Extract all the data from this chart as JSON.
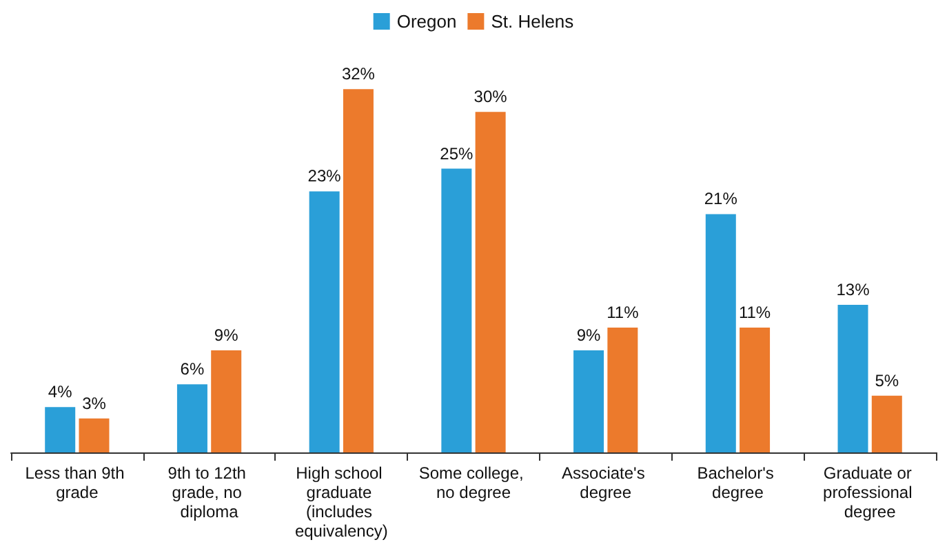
{
  "chart_data": {
    "type": "bar",
    "categories": [
      "Less than 9th grade",
      "9th to 12th grade, no diploma",
      "High school graduate (includes equivalency)",
      "Some college, no degree",
      "Associate's degree",
      "Bachelor's degree",
      "Graduate or professional degree"
    ],
    "series": [
      {
        "name": "Oregon",
        "color": "#2a9fd8",
        "values": [
          4,
          6,
          23,
          25,
          9,
          21,
          13
        ],
        "value_labels": [
          "4%",
          "6%",
          "23%",
          "25%",
          "9%",
          "21%",
          "13%"
        ]
      },
      {
        "name": "St. Helens",
        "color": "#ec7a2c",
        "values": [
          3,
          9,
          32,
          30,
          11,
          11,
          5
        ],
        "value_labels": [
          "3%",
          "9%",
          "32%",
          "30%",
          "11%",
          "11%",
          "5%"
        ]
      }
    ],
    "legend": "top"
  }
}
